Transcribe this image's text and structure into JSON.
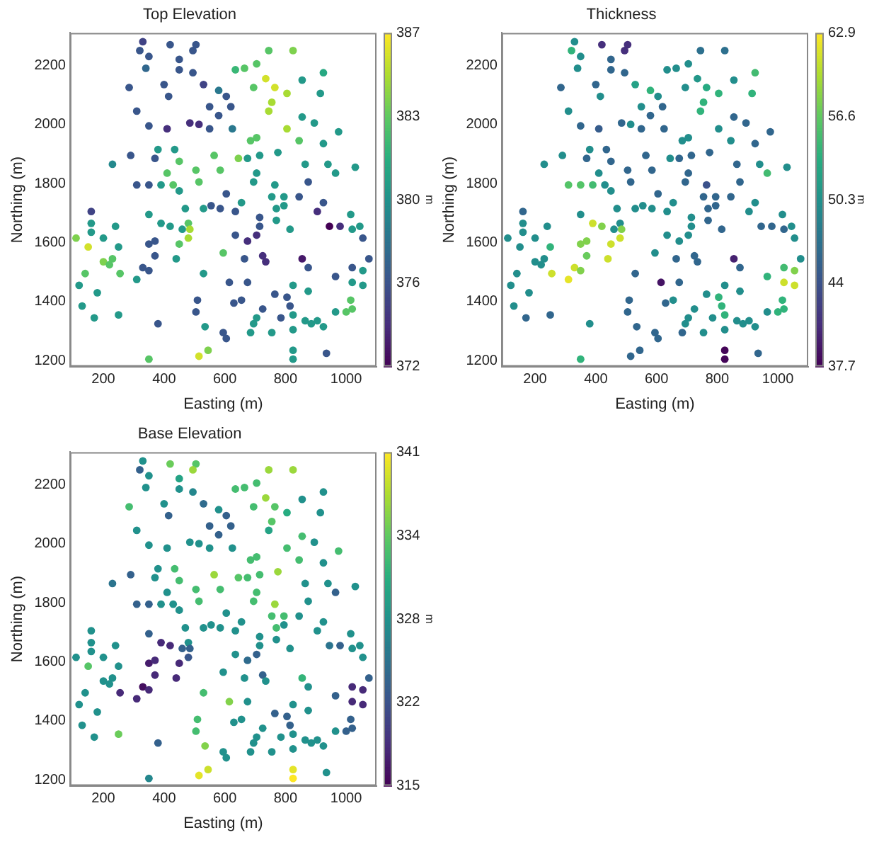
{
  "chart_data": [
    {
      "type": "scatter",
      "title": "Top Elevation",
      "xlabel": "Easting (m)",
      "ylabel": "Northing (m)",
      "clabel": "m",
      "grid": false,
      "legend": false,
      "xlim": [
        90,
        1100
      ],
      "ylim": [
        1180,
        2310
      ],
      "xticks": [
        200,
        400,
        600,
        800,
        1000
      ],
      "yticks": [
        1200,
        1400,
        1600,
        1800,
        2000,
        2200
      ],
      "clim": [
        372,
        387
      ],
      "cticks": [
        372,
        {
          "value": 375.75,
          "label": "376"
        },
        {
          "value": 379.5,
          "label": "380"
        },
        {
          "value": 383.25,
          "label": "383"
        },
        387
      ],
      "x": [
        330,
        420,
        505,
        320,
        495,
        350,
        745,
        825,
        450,
        340,
        450,
        495,
        635,
        665,
        705,
        735,
        765,
        695,
        755,
        745,
        805,
        855,
        925,
        915,
        285,
        400,
        415,
        530,
        580,
        605,
        550,
        620,
        310,
        350,
        410,
        485,
        515,
        550,
        580,
        625,
        805,
        855,
        895,
        975,
        685,
        705,
        845,
        925,
        290,
        230,
        380,
        370,
        435,
        450,
        565,
        645,
        675,
        715,
        775,
        410,
        505,
        585,
        705,
        865,
        940,
        965,
        1030,
        310,
        350,
        390,
        430,
        450,
        515,
        695,
        765,
        755,
        795,
        875,
        845,
        605,
        160,
        160,
        160,
        110,
        150,
        200,
        240,
        250,
        350,
        390,
        420,
        480,
        485,
        460,
        480,
        450,
        350,
        370,
        370,
        440,
        330,
        350,
        255,
        310,
        200,
        230,
        220,
        140,
        120,
        180,
        130,
        170,
        250,
        380,
        350,
        515,
        545,
        510,
        505,
        535,
        530,
        595,
        530,
        555,
        585,
        635,
        655,
        470,
        715,
        715,
        675,
        705,
        635,
        615,
        675,
        665,
        725,
        735,
        630,
        655,
        725,
        705,
        695,
        595,
        605,
        685,
        755,
        765,
        805,
        815,
        825,
        785,
        825,
        825,
        825,
        855,
        875,
        825,
        875,
        865,
        885,
        905,
        925,
        935,
        965,
        965,
        945,
        980,
        1015,
        1020,
        1045,
        1055,
        1075,
        1020,
        1055,
        1020,
        1055,
        1015,
        1020,
        1000,
        925,
        905,
        770,
        795,
        815,
        770
      ],
      "values": [
        2280,
        2270,
        2270,
        2250,
        2250,
        2230,
        2250,
        2250,
        2220,
        2190,
        2185,
        2175,
        2185,
        2190,
        2205,
        2155,
        2125,
        2125,
        2075,
        2045,
        2105,
        2150,
        2175,
        2105,
        2125,
        2135,
        2095,
        2135,
        2115,
        2095,
        2060,
        2060,
        2045,
        1995,
        1985,
        2005,
        2000,
        1985,
        2030,
        1985,
        1985,
        2025,
        2005,
        1975,
        1945,
        1955,
        1945,
        1935,
        1895,
        1865,
        1915,
        1885,
        1915,
        1875,
        1895,
        1885,
        1885,
        1895,
        1905,
        1835,
        1845,
        1845,
        1835,
        1865,
        1865,
        1835,
        1855,
        1795,
        1795,
        1795,
        1795,
        1775,
        1805,
        1805,
        1795,
        1755,
        1755,
        1805,
        1755,
        1765,
        1705,
        1665,
        1635,
        1615,
        1585,
        1615,
        1655,
        1585,
        1695,
        1665,
        1655,
        1665,
        1645,
        1645,
        1615,
        1595,
        1595,
        1605,
        1555,
        1545,
        1515,
        1505,
        1495,
        1475,
        1535,
        1545,
        1525,
        1495,
        1455,
        1430,
        1385,
        1345,
        1355,
        1325,
        1205,
        1215,
        1235,
        1405,
        1365,
        1315,
        1495,
        1565,
        1715,
        1725,
        1715,
        1705,
        1735,
        1715,
        1685,
        1655,
        1605,
        1625,
        1625,
        1465,
        1465,
        1545,
        1555,
        1535,
        1395,
        1405,
        1375,
        1345,
        1325,
        1295,
        1275,
        1295,
        1295,
        1425,
        1415,
        1385,
        1355,
        1345,
        1305,
        1235,
        1205,
        1545,
        1515,
        1455,
        1435,
        1335,
        1325,
        1335,
        1315,
        1225,
        1365,
        1485,
        1655,
        1655,
        1695,
        1645,
        1655,
        1615,
        1545,
        1515,
        1505,
        1465,
        1455,
        1405,
        1375,
        1365,
        1735,
        1705,
        1715,
        1725,
        1645,
        1675
      ],
      "cvalues": [
        375,
        376,
        376,
        376,
        376,
        376,
        383,
        384,
        376,
        377,
        376,
        376,
        382,
        383,
        383,
        386,
        386,
        383,
        385,
        385,
        385,
        380,
        381,
        380,
        376,
        376,
        376,
        375,
        378,
        376,
        376,
        376,
        376,
        376,
        374,
        374,
        374,
        376,
        376,
        378,
        385,
        380,
        380,
        380,
        383,
        383,
        383,
        380,
        376,
        379,
        380,
        376,
        380,
        383,
        383,
        384,
        380,
        380,
        380,
        383,
        383,
        383,
        380,
        380,
        380,
        380,
        380,
        376,
        376,
        380,
        383,
        380,
        383,
        380,
        380,
        380,
        380,
        376,
        376,
        376,
        375,
        380,
        380,
        384,
        386,
        380,
        380,
        380,
        380,
        380,
        380,
        383,
        385,
        380,
        385,
        383,
        376,
        376,
        376,
        380,
        376,
        376,
        383,
        380,
        384,
        383,
        383,
        383,
        380,
        380,
        380,
        380,
        380,
        376,
        383,
        386,
        384,
        376,
        376,
        380,
        380,
        383,
        380,
        376,
        376,
        376,
        380,
        380,
        376,
        376,
        374,
        374,
        376,
        376,
        376,
        376,
        374,
        374,
        376,
        376,
        376,
        380,
        380,
        376,
        376,
        380,
        380,
        376,
        376,
        376,
        380,
        376,
        380,
        380,
        380,
        373,
        376,
        380,
        380,
        380,
        380,
        380,
        380,
        376,
        380,
        376,
        372,
        374,
        380,
        380,
        380,
        376,
        376,
        376,
        380,
        380,
        380,
        383,
        383,
        383,
        376,
        374,
        380,
        380,
        380,
        380
      ]
    },
    {
      "type": "scatter",
      "title": "Thickness",
      "xlabel": "Easting (m)",
      "ylabel": "Northing (m)",
      "clabel": "m",
      "grid": false,
      "legend": false,
      "xlim": [
        90,
        1100
      ],
      "ylim": [
        1180,
        2310
      ],
      "xticks": [
        200,
        400,
        600,
        800,
        1000
      ],
      "yticks": [
        1200,
        1400,
        1600,
        1800,
        2000,
        2200
      ],
      "clim": [
        37.7,
        62.9
      ],
      "cticks": [
        37.7,
        44,
        50.3,
        56.6,
        62.9
      ],
      "x": [
        330,
        420,
        505,
        320,
        495,
        350,
        745,
        825,
        450,
        340,
        450,
        495,
        635,
        665,
        705,
        735,
        765,
        695,
        755,
        745,
        805,
        855,
        925,
        915,
        285,
        400,
        415,
        530,
        580,
        605,
        550,
        620,
        310,
        350,
        410,
        485,
        515,
        550,
        580,
        625,
        805,
        855,
        895,
        975,
        685,
        705,
        845,
        925,
        290,
        230,
        380,
        370,
        435,
        450,
        565,
        645,
        675,
        715,
        775,
        410,
        505,
        585,
        705,
        865,
        940,
        965,
        1030,
        310,
        350,
        390,
        430,
        450,
        515,
        695,
        765,
        755,
        795,
        875,
        845,
        605,
        160,
        160,
        160,
        110,
        150,
        200,
        240,
        250,
        350,
        390,
        420,
        480,
        485,
        460,
        480,
        450,
        350,
        370,
        370,
        440,
        330,
        350,
        255,
        310,
        200,
        230,
        220,
        140,
        120,
        180,
        130,
        170,
        250,
        380,
        350,
        515,
        545,
        510,
        505,
        535,
        530,
        595,
        530,
        555,
        585,
        635,
        655,
        470,
        715,
        715,
        675,
        705,
        635,
        615,
        675,
        665,
        725,
        735,
        630,
        655,
        725,
        705,
        695,
        595,
        605,
        685,
        755,
        765,
        805,
        815,
        825,
        785,
        825,
        825,
        825,
        855,
        875,
        825,
        875,
        865,
        885,
        905,
        925,
        935,
        965,
        965,
        945,
        980,
        1015,
        1020,
        1045,
        1055,
        1075,
        1020,
        1055,
        1020,
        1055,
        1015,
        1020,
        1000,
        925,
        905,
        770,
        795,
        815,
        770
      ],
      "values": [
        2280,
        2270,
        2270,
        2250,
        2250,
        2230,
        2250,
        2250,
        2220,
        2190,
        2185,
        2175,
        2185,
        2190,
        2205,
        2155,
        2125,
        2125,
        2075,
        2045,
        2105,
        2150,
        2175,
        2105,
        2125,
        2135,
        2095,
        2135,
        2115,
        2095,
        2060,
        2060,
        2045,
        1995,
        1985,
        2005,
        2000,
        1985,
        2030,
        1985,
        1985,
        2025,
        2005,
        1975,
        1945,
        1955,
        1945,
        1935,
        1895,
        1865,
        1915,
        1885,
        1915,
        1875,
        1895,
        1885,
        1885,
        1895,
        1905,
        1835,
        1845,
        1845,
        1835,
        1865,
        1865,
        1835,
        1855,
        1795,
        1795,
        1795,
        1795,
        1775,
        1805,
        1805,
        1795,
        1755,
        1755,
        1805,
        1755,
        1765,
        1705,
        1665,
        1635,
        1615,
        1585,
        1615,
        1655,
        1585,
        1695,
        1665,
        1655,
        1665,
        1645,
        1645,
        1615,
        1595,
        1595,
        1605,
        1555,
        1545,
        1515,
        1505,
        1495,
        1475,
        1535,
        1545,
        1525,
        1495,
        1455,
        1430,
        1385,
        1345,
        1355,
        1325,
        1205,
        1215,
        1235,
        1405,
        1365,
        1315,
        1495,
        1565,
        1715,
        1725,
        1715,
        1705,
        1735,
        1715,
        1685,
        1655,
        1605,
        1625,
        1625,
        1465,
        1465,
        1545,
        1555,
        1535,
        1395,
        1405,
        1375,
        1345,
        1325,
        1295,
        1275,
        1295,
        1295,
        1425,
        1415,
        1385,
        1355,
        1345,
        1305,
        1235,
        1205,
        1545,
        1515,
        1455,
        1435,
        1335,
        1325,
        1335,
        1315,
        1225,
        1365,
        1485,
        1655,
        1655,
        1695,
        1645,
        1655,
        1615,
        1545,
        1515,
        1505,
        1465,
        1455,
        1405,
        1375,
        1365,
        1735,
        1705,
        1715,
        1725,
        1645,
        1675
      ],
      "cvalues": [
        50,
        41,
        41,
        54,
        41,
        50,
        47,
        47,
        46,
        50,
        46,
        46,
        50,
        50,
        50,
        51,
        53,
        50,
        54,
        54,
        54,
        50,
        55,
        54,
        46,
        46,
        50,
        52,
        54,
        50,
        50,
        46,
        50,
        46,
        45,
        46,
        50,
        46,
        46,
        46,
        50,
        46,
        46,
        46,
        50,
        50,
        50,
        46,
        50,
        50,
        50,
        46,
        46,
        46,
        46,
        50,
        46,
        46,
        46,
        50,
        46,
        46,
        46,
        46,
        50,
        55,
        50,
        56,
        56,
        55,
        50,
        50,
        46,
        46,
        44,
        46,
        46,
        46,
        46,
        46,
        46,
        50,
        50,
        50,
        50,
        50,
        50,
        54,
        50,
        61,
        58,
        50,
        58,
        50,
        61,
        61,
        58,
        58,
        57,
        61,
        61,
        58,
        61,
        62,
        50,
        50,
        50,
        50,
        50,
        50,
        50,
        46,
        46,
        50,
        54,
        46,
        46,
        46,
        46,
        46,
        46,
        50,
        50,
        50,
        50,
        50,
        50,
        50,
        50,
        50,
        50,
        50,
        50,
        39,
        46,
        46,
        46,
        46,
        46,
        50,
        50,
        50,
        50,
        46,
        46,
        46,
        50,
        50,
        54,
        54,
        54,
        50,
        50,
        38,
        38,
        40,
        46,
        50,
        50,
        50,
        50,
        50,
        50,
        46,
        50,
        54,
        46,
        46,
        50,
        46,
        50,
        50,
        50,
        55,
        58,
        61,
        61,
        54,
        54,
        54,
        50,
        50,
        46,
        46,
        46,
        46
      ]
    },
    {
      "type": "scatter",
      "title": "Base Elevation",
      "xlabel": "Easting (m)",
      "ylabel": "Northing (m)",
      "clabel": "m",
      "grid": false,
      "legend": false,
      "xlim": [
        90,
        1100
      ],
      "ylim": [
        1180,
        2310
      ],
      "xticks": [
        200,
        400,
        600,
        800,
        1000
      ],
      "yticks": [
        1200,
        1400,
        1600,
        1800,
        2000,
        2200
      ],
      "clim": [
        315,
        341
      ],
      "cticks": [
        315,
        {
          "value": 321.5,
          "label": "322"
        },
        328,
        {
          "value": 334.5,
          "label": "334"
        },
        341
      ],
      "x": [
        330,
        420,
        505,
        320,
        495,
        350,
        745,
        825,
        450,
        340,
        450,
        495,
        635,
        665,
        705,
        735,
        765,
        695,
        755,
        745,
        805,
        855,
        925,
        915,
        285,
        400,
        415,
        530,
        580,
        605,
        550,
        620,
        310,
        350,
        410,
        485,
        515,
        550,
        580,
        625,
        805,
        855,
        895,
        975,
        685,
        705,
        845,
        925,
        290,
        230,
        380,
        370,
        435,
        450,
        565,
        645,
        675,
        715,
        775,
        410,
        505,
        585,
        705,
        865,
        940,
        965,
        1030,
        310,
        350,
        390,
        430,
        450,
        515,
        695,
        765,
        755,
        795,
        875,
        845,
        605,
        160,
        160,
        160,
        110,
        150,
        200,
        240,
        250,
        350,
        390,
        420,
        480,
        485,
        460,
        480,
        450,
        350,
        370,
        370,
        440,
        330,
        350,
        255,
        310,
        200,
        230,
        220,
        140,
        120,
        180,
        130,
        170,
        250,
        380,
        350,
        515,
        545,
        510,
        505,
        535,
        530,
        595,
        530,
        555,
        585,
        635,
        655,
        470,
        715,
        715,
        675,
        705,
        635,
        615,
        675,
        665,
        725,
        735,
        630,
        655,
        725,
        705,
        695,
        595,
        605,
        685,
        755,
        765,
        805,
        815,
        825,
        785,
        825,
        825,
        825,
        855,
        875,
        825,
        875,
        865,
        885,
        905,
        925,
        935,
        965,
        965,
        945,
        980,
        1015,
        1020,
        1045,
        1055,
        1075,
        1020,
        1055,
        1020,
        1055,
        1015,
        1020,
        1000,
        925,
        905,
        770,
        795,
        815,
        770
      ],
      "values": [
        2280,
        2270,
        2270,
        2250,
        2250,
        2230,
        2250,
        2250,
        2220,
        2190,
        2185,
        2175,
        2185,
        2190,
        2205,
        2155,
        2125,
        2125,
        2075,
        2045,
        2105,
        2150,
        2175,
        2105,
        2125,
        2135,
        2095,
        2135,
        2115,
        2095,
        2060,
        2060,
        2045,
        1995,
        1985,
        2005,
        2000,
        1985,
        2030,
        1985,
        1985,
        2025,
        2005,
        1975,
        1945,
        1955,
        1945,
        1935,
        1895,
        1865,
        1915,
        1885,
        1915,
        1875,
        1895,
        1885,
        1885,
        1895,
        1905,
        1835,
        1845,
        1845,
        1835,
        1865,
        1865,
        1835,
        1855,
        1795,
        1795,
        1795,
        1795,
        1775,
        1805,
        1805,
        1795,
        1755,
        1755,
        1805,
        1755,
        1765,
        1705,
        1665,
        1635,
        1615,
        1585,
        1615,
        1655,
        1585,
        1695,
        1665,
        1655,
        1665,
        1645,
        1645,
        1615,
        1595,
        1595,
        1605,
        1555,
        1545,
        1515,
        1505,
        1495,
        1475,
        1535,
        1545,
        1525,
        1495,
        1455,
        1430,
        1385,
        1345,
        1355,
        1325,
        1205,
        1215,
        1235,
        1405,
        1365,
        1315,
        1495,
        1565,
        1715,
        1725,
        1715,
        1705,
        1735,
        1715,
        1685,
        1655,
        1605,
        1625,
        1625,
        1465,
        1465,
        1545,
        1555,
        1535,
        1395,
        1405,
        1375,
        1345,
        1325,
        1295,
        1275,
        1295,
        1295,
        1425,
        1415,
        1385,
        1355,
        1345,
        1305,
        1235,
        1205,
        1545,
        1515,
        1455,
        1435,
        1335,
        1325,
        1335,
        1315,
        1225,
        1365,
        1485,
        1655,
        1655,
        1695,
        1645,
        1655,
        1615,
        1545,
        1515,
        1505,
        1465,
        1455,
        1405,
        1375,
        1365,
        1735,
        1705,
        1715,
        1725,
        1645,
        1675
      ],
      "cvalues": [
        328,
        335,
        334,
        323,
        337,
        328,
        337,
        337,
        330,
        328,
        328,
        327,
        333,
        333,
        333,
        337,
        334,
        333,
        334,
        330,
        331,
        328,
        328,
        328,
        333,
        328,
        323,
        324,
        328,
        323,
        323,
        323,
        328,
        328,
        328,
        328,
        328,
        328,
        323,
        328,
        333,
        333,
        328,
        333,
        333,
        333,
        333,
        328,
        323,
        325,
        328,
        328,
        333,
        333,
        337,
        334,
        333,
        333,
        337,
        328,
        333,
        333,
        333,
        328,
        328,
        323,
        328,
        323,
        323,
        328,
        328,
        328,
        333,
        333,
        337,
        333,
        333,
        328,
        328,
        328,
        328,
        328,
        328,
        328,
        334,
        328,
        328,
        328,
        323,
        318,
        318,
        328,
        323,
        323,
        322,
        318,
        317,
        318,
        318,
        318,
        316,
        318,
        318,
        318,
        328,
        328,
        328,
        328,
        328,
        328,
        328,
        328,
        335,
        323,
        327,
        340,
        339,
        333,
        333,
        336,
        333,
        328,
        328,
        328,
        328,
        328,
        328,
        328,
        328,
        328,
        324,
        323,
        328,
        336,
        328,
        328,
        323,
        328,
        328,
        328,
        328,
        328,
        328,
        328,
        328,
        328,
        328,
        323,
        323,
        323,
        328,
        328,
        328,
        340,
        341,
        332,
        328,
        328,
        328,
        328,
        328,
        328,
        328,
        328,
        328,
        323,
        325,
        323,
        328,
        328,
        328,
        328,
        323,
        318,
        318,
        318,
        318,
        323,
        323,
        323,
        328,
        328,
        333,
        328,
        328,
        328
      ]
    }
  ]
}
